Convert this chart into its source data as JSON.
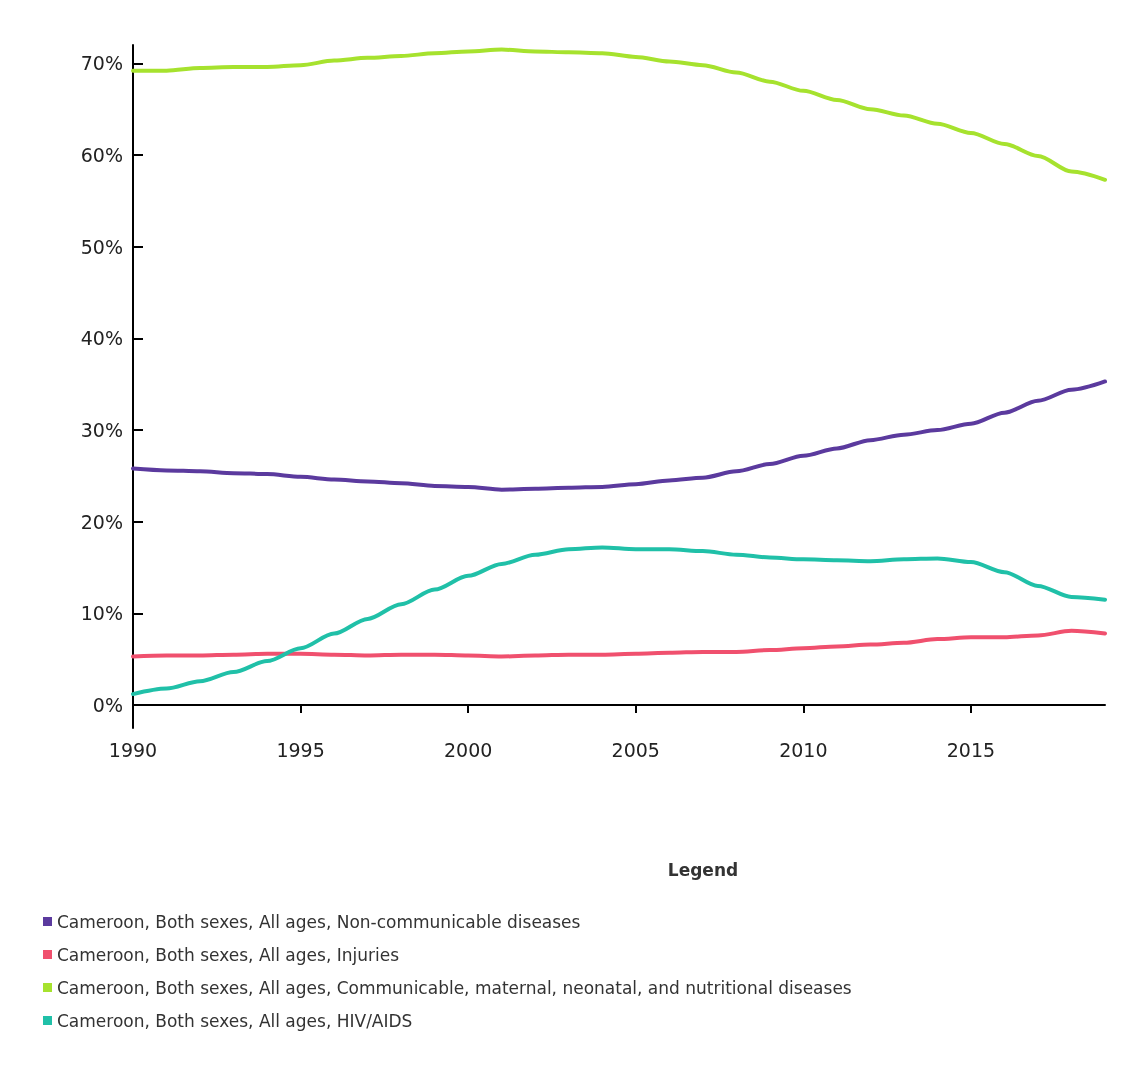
{
  "chart_data": {
    "type": "line",
    "legend_title": "Legend",
    "legend": "bottom",
    "x": [
      1990,
      1991,
      1992,
      1993,
      1994,
      1995,
      1996,
      1997,
      1998,
      1999,
      2000,
      2001,
      2002,
      2003,
      2004,
      2005,
      2006,
      2007,
      2008,
      2009,
      2010,
      2011,
      2012,
      2013,
      2014,
      2015,
      2016,
      2017,
      2018,
      2019
    ],
    "xlim": [
      1990,
      2019
    ],
    "xticks": [
      1990,
      1995,
      2000,
      2005,
      2010,
      2015
    ],
    "ylim": [
      -2.5,
      72
    ],
    "yticks": [
      {
        "value": 0,
        "label": "0%"
      },
      {
        "value": 10,
        "label": "10%"
      },
      {
        "value": 20,
        "label": "20%"
      },
      {
        "value": 30,
        "label": "30%"
      },
      {
        "value": 40,
        "label": "40%"
      },
      {
        "value": 50,
        "label": "50%"
      },
      {
        "value": 60,
        "label": "60%"
      },
      {
        "value": 70,
        "label": "70%"
      }
    ],
    "series": [
      {
        "name": "Cameroon, Both sexes, All ages, Non-communicable diseases",
        "color": "#5b3a9e",
        "values": [
          25.8,
          25.6,
          25.5,
          25.3,
          25.2,
          24.9,
          24.6,
          24.4,
          24.2,
          23.9,
          23.8,
          23.5,
          23.6,
          23.7,
          23.8,
          24.1,
          24.5,
          24.8,
          25.5,
          26.3,
          27.2,
          28.0,
          28.9,
          29.5,
          30.0,
          30.7,
          31.9,
          33.2,
          34.4,
          35.3
        ]
      },
      {
        "name": "Cameroon, Both sexes, All ages, Injuries",
        "color": "#f0506e",
        "values": [
          5.3,
          5.4,
          5.4,
          5.5,
          5.6,
          5.6,
          5.5,
          5.4,
          5.5,
          5.5,
          5.4,
          5.3,
          5.4,
          5.5,
          5.5,
          5.6,
          5.7,
          5.8,
          5.8,
          6.0,
          6.2,
          6.4,
          6.6,
          6.8,
          7.2,
          7.4,
          7.4,
          7.6,
          8.1,
          7.8
        ]
      },
      {
        "name": "Cameroon, Both sexes, All ages, Communicable, maternal, neonatal, and nutritional diseases",
        "color": "#a6e22e",
        "values": [
          69.2,
          69.2,
          69.5,
          69.6,
          69.6,
          69.8,
          70.3,
          70.6,
          70.8,
          71.1,
          71.3,
          71.5,
          71.3,
          71.2,
          71.1,
          70.7,
          70.2,
          69.8,
          69.0,
          68.0,
          67.0,
          66.0,
          65.0,
          64.3,
          63.4,
          62.4,
          61.2,
          59.9,
          58.2,
          57.3
        ]
      },
      {
        "name": "Cameroon, Both sexes, All ages, HIV/AIDS",
        "color": "#20c0a8",
        "values": [
          1.2,
          1.8,
          2.6,
          3.6,
          4.8,
          6.2,
          7.8,
          9.4,
          11.0,
          12.6,
          14.1,
          15.4,
          16.4,
          17.0,
          17.2,
          17.0,
          17.0,
          16.8,
          16.4,
          16.1,
          15.9,
          15.8,
          15.7,
          15.9,
          16.0,
          15.6,
          14.5,
          13.0,
          11.8,
          11.5
        ]
      }
    ]
  }
}
